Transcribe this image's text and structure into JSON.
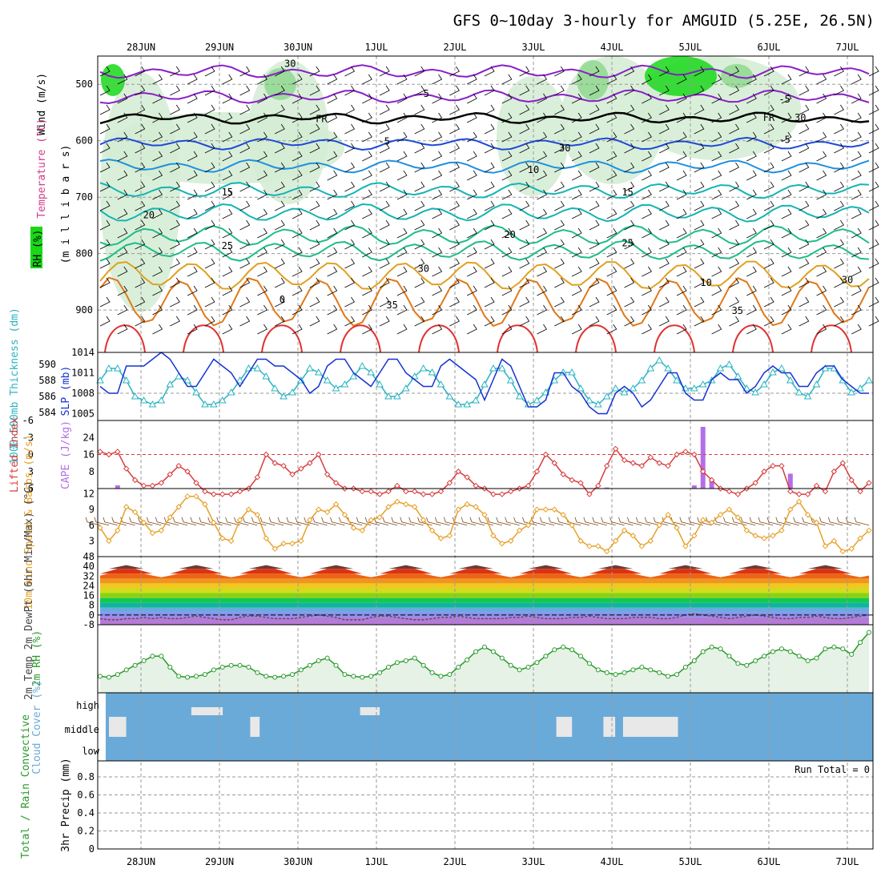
{
  "title": "GFS 0~10day 3-hourly for AMGUID (5.25E, 26.5N)",
  "dates": [
    "28JUN",
    "29JUN",
    "30JUN",
    "1JUL",
    "2JUL",
    "3JUL",
    "4JUL",
    "5JUL",
    "6JUL",
    "7JUL"
  ],
  "colors": {
    "purple": "#8a1ec8",
    "black": "#000000",
    "blue": "#1e4ad8",
    "lightblue": "#1e90e0",
    "teal": "#14b4b4",
    "green": "#1ebc8a",
    "orange1": "#e0a020",
    "orange2": "#e07818",
    "red": "#e03232",
    "slp": "#1432d2",
    "thick": "#2ab4c0",
    "li": "#d83c3c",
    "cape": "#b46ee6",
    "wind": "#e6a028",
    "barb": "#7a4a20",
    "rh": "#2a9a2a",
    "rhfill": "#e6f2e6",
    "cloud": "#6aaad8",
    "cloudpatch": "#e8e8e8",
    "rhlight": "#d2ecd2",
    "rhmid": "#8fd88f",
    "rhhigh": "#18d818"
  },
  "chart_data": [
    {
      "panel": "upper_air",
      "type": "line",
      "ylabel_segments": [
        "Wind (m/s)",
        "Temperature (°C)",
        "RH (%)"
      ],
      "ylabel_units": "(m i l l i b a r s)",
      "yticks": [
        500,
        600,
        700,
        800,
        900
      ],
      "ylim": [
        450,
        975
      ],
      "contour_labels": [
        {
          "text": "-5",
          "x": 3.6,
          "p": 515
        },
        {
          "text": "-5",
          "x": 8.2,
          "p": 525
        },
        {
          "text": "FR",
          "x": 2.3,
          "p": 560
        },
        {
          "text": "FR",
          "x": 8.0,
          "p": 558
        },
        {
          "text": "-5",
          "x": 3.1,
          "p": 600
        },
        {
          "text": "-5",
          "x": 8.2,
          "p": 597
        },
        {
          "text": "10",
          "x": 5.0,
          "p": 650
        },
        {
          "text": "15",
          "x": 1.1,
          "p": 690
        },
        {
          "text": "15",
          "x": 6.2,
          "p": 690
        },
        {
          "text": "20",
          "x": 0.1,
          "p": 730
        },
        {
          "text": "20",
          "x": 4.7,
          "p": 765
        },
        {
          "text": "25",
          "x": 1.1,
          "p": 785
        },
        {
          "text": "25",
          "x": 6.2,
          "p": 780
        },
        {
          "text": "30",
          "x": 3.6,
          "p": 825
        },
        {
          "text": "30",
          "x": 9.0,
          "p": 845
        },
        {
          "text": "35",
          "x": 3.2,
          "p": 890
        },
        {
          "text": "35",
          "x": 7.6,
          "p": 900
        },
        {
          "text": "10",
          "x": 7.2,
          "p": 850
        },
        {
          "text": "30",
          "x": 1.9,
          "p": 462
        },
        {
          "text": "30",
          "x": 5.4,
          "p": 612
        },
        {
          "text": "30",
          "x": 8.4,
          "p": 558
        },
        {
          "text": "0",
          "x": 1.8,
          "p": 880
        }
      ],
      "isotherms": [
        {
          "name": "-10",
          "color": "purple",
          "base": 478,
          "amp": 8
        },
        {
          "name": "-5",
          "color": "purple",
          "base": 522,
          "amp": 8
        },
        {
          "name": "FR",
          "color": "black",
          "base": 560,
          "amp": 6
        },
        {
          "name": "-5b",
          "color": "blue",
          "base": 605,
          "amp": 7
        },
        {
          "name": "10",
          "color": "lightblue",
          "base": 645,
          "amp": 8
        },
        {
          "name": "15",
          "color": "teal",
          "base": 688,
          "amp": 10
        },
        {
          "name": "20",
          "color": "teal",
          "base": 728,
          "amp": 12
        },
        {
          "name": "20b",
          "color": "green",
          "base": 768,
          "amp": 14
        },
        {
          "name": "25",
          "color": "green",
          "base": 795,
          "amp": 14
        },
        {
          "name": "30",
          "color": "orange1",
          "base": 838,
          "amp": 22
        },
        {
          "name": "35",
          "color": "orange2",
          "base": 885,
          "amp": 40
        }
      ]
    },
    {
      "panel": "slp_thickness",
      "type": "line",
      "ylabel_left": "1000-500mb Thickness (dm)",
      "ylabel_right": "SLP (mb)",
      "yticks_left": [
        584,
        586,
        588,
        590
      ],
      "yticks_right": [
        1005,
        1008,
        1011,
        1014
      ],
      "slp": [
        1009,
        1008,
        1008,
        1012,
        1012,
        1012,
        1013,
        1014,
        1013,
        1011,
        1009,
        1009,
        1011,
        1013,
        1012,
        1011,
        1009,
        1011,
        1013,
        1013,
        1012,
        1012,
        1011,
        1010,
        1008,
        1009,
        1012,
        1013,
        1013,
        1011,
        1010,
        1009,
        1011,
        1013,
        1013,
        1011,
        1010,
        1009,
        1009,
        1012,
        1013,
        1012,
        1011,
        1010,
        1007,
        1010,
        1013,
        1012,
        1009,
        1006,
        1006,
        1007,
        1011,
        1011,
        1009,
        1008,
        1006,
        1005,
        1005,
        1008,
        1009,
        1008,
        1006,
        1007,
        1009,
        1011,
        1011,
        1008,
        1007,
        1007,
        1010,
        1011,
        1010,
        1010,
        1008,
        1009,
        1011,
        1012,
        1011,
        1011,
        1009,
        1009,
        1011,
        1012,
        1012,
        1010,
        1009,
        1008,
        1008
      ],
      "thickness": [
        588,
        589.5,
        589.5,
        588,
        586,
        585.5,
        585,
        585.5,
        587.5,
        588.5,
        588,
        586.5,
        585,
        585,
        585.5,
        586.5,
        588,
        589.5,
        589.5,
        588.5,
        587,
        586,
        586.5,
        588,
        589.5,
        589,
        588,
        587,
        587.5,
        588.5,
        589.8,
        589,
        587.5,
        586,
        586,
        587,
        588.5,
        589.5,
        589,
        587.5,
        586,
        585,
        585,
        585.5,
        587.5,
        589.5,
        589.5,
        588,
        586,
        585,
        585.5,
        586.5,
        588,
        589,
        589,
        587,
        585.5,
        585,
        586,
        587,
        586.5,
        587,
        588,
        589.5,
        590.5,
        589.5,
        588,
        587,
        587,
        587.5,
        588,
        589.5,
        590,
        588.5,
        587,
        586.5,
        587.5,
        589,
        589.5,
        588,
        586.5,
        586,
        587.5,
        589.5,
        589.5,
        588,
        586.5,
        587,
        588
      ]
    },
    {
      "panel": "lifted_cape",
      "type": "line",
      "ylabel_left": "Lifted Index",
      "ylabel_right": "CAPE (J/kg)",
      "yticks_left": [
        -6,
        -3,
        0,
        3,
        6
      ],
      "yticks_right": [
        8,
        16,
        24
      ],
      "lifted_index": [
        -0.5,
        0,
        -0.5,
        2.5,
        4.5,
        5.5,
        5.5,
        5,
        3.5,
        2,
        3,
        5,
        6.5,
        7,
        7,
        7,
        6.5,
        6,
        4,
        0,
        1.5,
        2,
        3.5,
        2.5,
        1.5,
        0,
        3.5,
        5,
        6,
        6,
        6.5,
        6.5,
        7,
        6.5,
        5.5,
        6.5,
        6.5,
        7,
        7,
        6.5,
        5,
        3,
        4,
        5.5,
        6,
        7,
        7,
        6.5,
        6,
        5.5,
        3,
        0,
        1.5,
        3.5,
        4.5,
        5,
        7,
        5.5,
        2,
        -1,
        1,
        1.5,
        2,
        0.5,
        1.5,
        2,
        0,
        -0.5,
        0,
        3,
        4.5,
        6,
        6.5,
        7,
        6,
        5,
        3,
        2,
        2,
        6.5,
        7,
        7,
        5.5,
        6.5,
        3,
        1.5,
        4.5,
        6.5,
        5
      ],
      "cape": [
        0,
        0,
        1.5,
        0,
        0,
        0,
        0,
        0,
        0,
        0,
        0,
        0,
        0,
        0,
        0,
        0,
        0,
        0,
        0,
        0,
        0,
        0,
        0,
        0,
        0,
        0,
        0,
        0,
        0,
        0,
        0,
        0,
        0,
        0,
        0,
        0,
        0,
        0,
        0,
        0,
        0,
        0,
        0,
        0,
        0,
        0,
        0,
        0,
        0,
        0,
        0,
        0,
        0,
        0,
        0,
        0,
        0,
        0,
        0.5,
        0,
        0,
        0,
        0,
        0,
        0,
        0,
        0,
        0,
        1.5,
        29,
        4,
        0,
        0,
        0,
        0,
        0,
        0,
        0,
        0,
        7,
        0,
        0,
        0,
        0,
        0,
        0,
        0,
        0,
        0
      ],
      "threshold": 0
    },
    {
      "panel": "wind10m",
      "type": "line",
      "ylabel": "10m Wind Speed & Barbs (m/s)",
      "yticks": [
        3,
        6,
        9,
        12
      ],
      "speed": [
        5.5,
        3,
        5,
        9.5,
        8.5,
        6.5,
        4.5,
        5,
        7.5,
        9.5,
        11.5,
        11.5,
        10,
        6.5,
        3.5,
        3,
        7,
        9,
        8,
        3.5,
        1.5,
        2.5,
        2.5,
        3,
        7,
        9,
        8.5,
        10,
        8,
        5.5,
        5,
        7,
        7.5,
        9.5,
        10.5,
        10,
        9.5,
        7,
        5,
        3.5,
        4,
        9,
        10,
        9.5,
        8,
        4,
        2.5,
        3,
        5,
        6,
        9,
        9,
        9,
        8,
        6,
        3,
        2,
        2,
        1,
        3,
        5,
        4,
        2,
        3,
        6,
        8,
        5.5,
        2,
        4,
        7,
        6.5,
        8,
        9,
        7.5,
        5,
        4,
        3.5,
        4,
        5,
        9,
        10.5,
        8,
        6.5,
        2,
        3,
        1,
        1.5,
        3.5,
        5
      ]
    },
    {
      "panel": "temp2m",
      "type": "area",
      "ylabel": "2m Temp 2m DewPt (6hr Min/Max) (°C)",
      "yticks": [
        -8,
        0,
        8,
        16,
        24,
        32,
        40,
        48
      ],
      "yticklabels": [
        "-8",
        "0",
        "8",
        "16",
        "24",
        "32",
        "40",
        "48"
      ],
      "dewpoint": [
        -3,
        -4,
        -4,
        -3,
        -3,
        -2,
        -3,
        -2,
        -3,
        -3,
        -2,
        -1,
        -2,
        -3,
        -4,
        -4,
        -2,
        -1,
        -1,
        -2,
        -3,
        -3,
        -3,
        -2,
        -1,
        0,
        -1,
        -2,
        -4,
        -4,
        -4,
        -2,
        -1,
        -1,
        -2,
        -3,
        -4,
        -4,
        -3,
        -2,
        -2,
        -1,
        -2,
        -3,
        -3,
        -3,
        -3,
        -2,
        -2,
        -1,
        -2,
        -3,
        -3,
        -3,
        -2,
        -2,
        -1,
        -2,
        -3,
        -3,
        -3,
        -2,
        -2,
        -2,
        -3,
        -3,
        -2,
        0,
        1,
        0,
        -1,
        -2,
        -3,
        -2,
        -1,
        0,
        -1,
        -2,
        -3,
        -3,
        -2,
        -2,
        -1,
        -2,
        -3,
        -3,
        -2,
        -1,
        0
      ]
    },
    {
      "panel": "rh2m",
      "type": "area",
      "ylabel": "2m RH (%)",
      "rh": [
        18,
        17,
        20,
        25,
        30,
        35,
        40,
        40,
        28,
        18,
        17,
        18,
        20,
        25,
        28,
        30,
        30,
        28,
        22,
        18,
        17,
        18,
        20,
        25,
        30,
        35,
        38,
        30,
        20,
        18,
        17,
        18,
        22,
        28,
        33,
        35,
        38,
        30,
        22,
        18,
        20,
        28,
        36,
        45,
        50,
        45,
        38,
        30,
        25,
        28,
        33,
        40,
        47,
        50,
        47,
        40,
        32,
        25,
        22,
        20,
        22,
        25,
        28,
        25,
        22,
        18,
        20,
        28,
        35,
        45,
        50,
        48,
        40,
        32,
        30,
        35,
        40,
        45,
        48,
        45,
        40,
        35,
        38,
        48,
        50,
        48,
        42,
        55,
        66
      ]
    },
    {
      "panel": "cloud",
      "type": "heatmap",
      "ylabel": "Cloud Cover (%)",
      "levels": [
        "high",
        "middle",
        "low"
      ],
      "patches": [
        {
          "x0": 0,
          "x1": 0.22,
          "level": "middle"
        },
        {
          "x0": 1.05,
          "x1": 1.45,
          "level": "high"
        },
        {
          "x0": 1.8,
          "x1": 1.92,
          "level": "middle"
        },
        {
          "x0": 3.2,
          "x1": 3.45,
          "level": "high"
        },
        {
          "x0": 5.7,
          "x1": 5.9,
          "level": "middle"
        },
        {
          "x0": 6.3,
          "x1": 6.45,
          "level": "middle"
        },
        {
          "x0": 6.55,
          "x1": 7.25,
          "level": "middle"
        }
      ]
    },
    {
      "panel": "precip",
      "type": "bar",
      "ylabel_left": "Total / Rain Convective",
      "ylabel_right": "3hr Precip (mm)",
      "yticks": [
        "0",
        "0.2",
        "0.4",
        "0.6",
        "0.8"
      ],
      "ylim": [
        0,
        0.9
      ],
      "run_total": "Run Total = 0",
      "values": []
    }
  ]
}
